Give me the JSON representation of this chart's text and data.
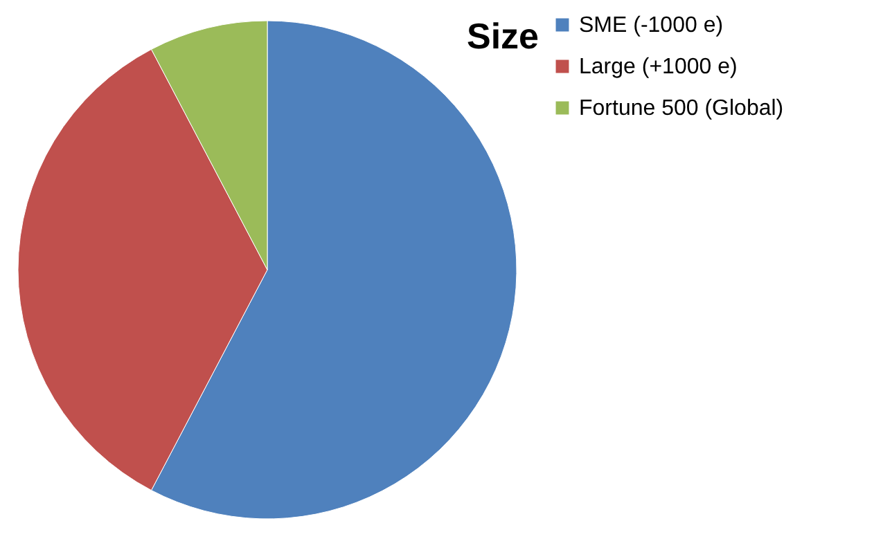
{
  "chart_data": {
    "type": "pie",
    "title": "Size",
    "categories": [
      "SME (-1000 e)",
      "Large (+1000 e)",
      "Fortune 500 (Global)"
    ],
    "values": [
      57.7,
      34.6,
      7.7
    ],
    "colors": [
      "#4f81bd",
      "#c0504d",
      "#9bbb59"
    ],
    "legend": "right"
  }
}
